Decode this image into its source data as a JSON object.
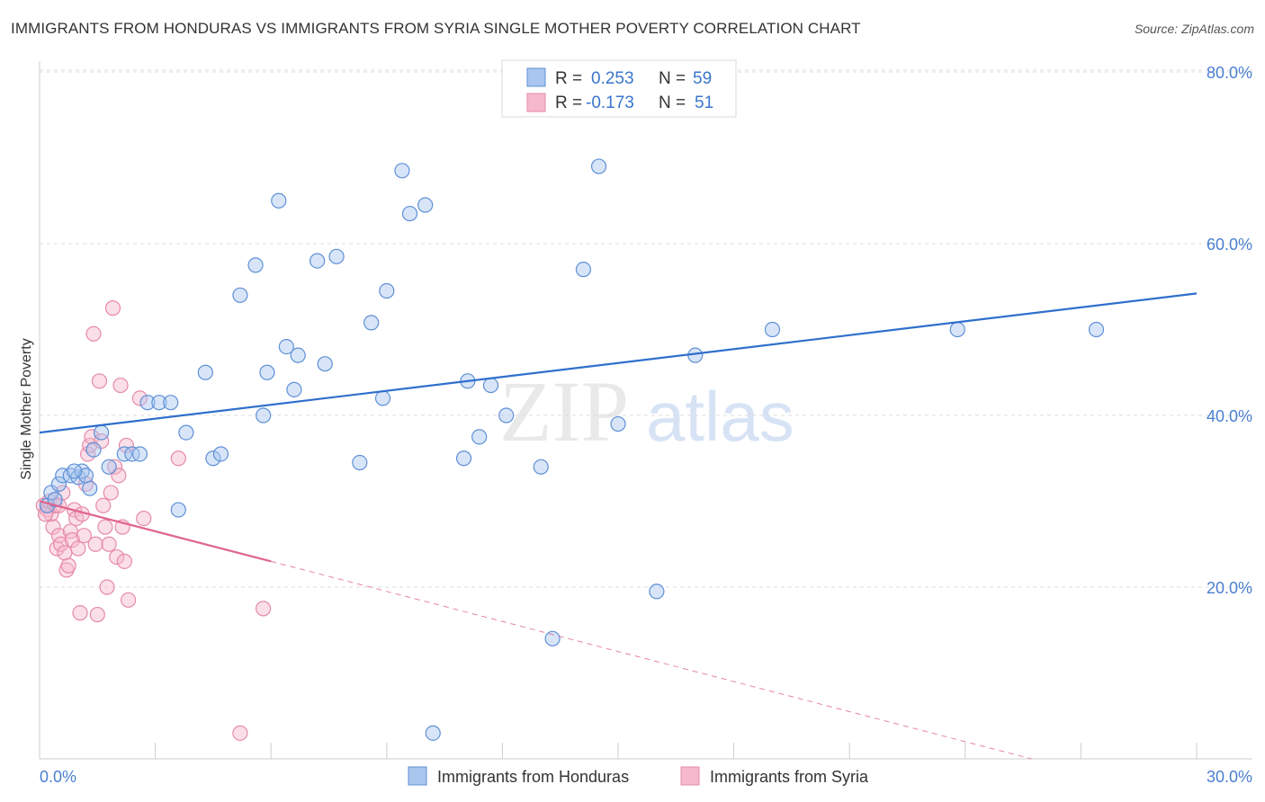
{
  "title": "IMMIGRANTS FROM HONDURAS VS IMMIGRANTS FROM SYRIA SINGLE MOTHER POVERTY CORRELATION CHART",
  "source": "Source: ZipAtlas.com",
  "watermark": {
    "zip": "ZIP",
    "atlas": "atlas"
  },
  "colors": {
    "honduras_fill": "#a9c6ef",
    "honduras_stroke": "#5e90d6",
    "honduras_line": "#2f6fcc",
    "syria_fill": "#f6b8cc",
    "syria_stroke": "#e58aa8",
    "syria_line": "#e0648f",
    "grid": "#dddddd",
    "tick_text": "#4a7fd0"
  },
  "legend": {
    "rows": [
      {
        "r_label": "R =",
        "r_value": "0.253",
        "n_label": "N =",
        "n_value": "59"
      },
      {
        "r_label": "R =",
        "r_value": "-0.173",
        "n_label": "N =",
        "n_value": "51"
      }
    ]
  },
  "chart_data": {
    "type": "scatter",
    "title": "IMMIGRANTS FROM HONDURAS VS IMMIGRANTS FROM SYRIA SINGLE MOTHER POVERTY CORRELATION CHART",
    "xlabel": "",
    "ylabel": "Single Mother Poverty",
    "xlim": [
      0,
      30
    ],
    "ylim": [
      0,
      80
    ],
    "x_tick_labels": [
      "0.0%",
      "30.0%"
    ],
    "y_ticks": [
      20,
      40,
      60,
      80
    ],
    "y_tick_labels": [
      "20.0%",
      "40.0%",
      "60.0%",
      "80.0%"
    ],
    "series": [
      {
        "name": "Immigrants from Honduras",
        "r": 0.253,
        "n": 59,
        "trend": {
          "x0": 0.0,
          "y0": 38.0,
          "x1": 30.0,
          "y1": 54.2,
          "dashed_from": null
        },
        "points": [
          [
            0.2,
            29.5
          ],
          [
            0.3,
            31.0
          ],
          [
            0.4,
            30.2
          ],
          [
            0.5,
            32.0
          ],
          [
            0.6,
            33.0
          ],
          [
            0.8,
            33.0
          ],
          [
            1.0,
            32.8
          ],
          [
            1.1,
            33.5
          ],
          [
            1.3,
            31.5
          ],
          [
            1.4,
            36.0
          ],
          [
            1.6,
            38.0
          ],
          [
            1.8,
            34.0
          ],
          [
            2.2,
            35.5
          ],
          [
            2.4,
            35.5
          ],
          [
            2.6,
            35.5
          ],
          [
            2.8,
            41.5
          ],
          [
            3.1,
            41.5
          ],
          [
            3.4,
            41.5
          ],
          [
            3.6,
            29.0
          ],
          [
            3.8,
            38.0
          ],
          [
            4.3,
            45.0
          ],
          [
            4.5,
            35.0
          ],
          [
            4.7,
            35.5
          ],
          [
            5.2,
            54.0
          ],
          [
            5.6,
            57.5
          ],
          [
            5.8,
            40.0
          ],
          [
            5.9,
            45.0
          ],
          [
            6.2,
            65.0
          ],
          [
            6.4,
            48.0
          ],
          [
            6.6,
            43.0
          ],
          [
            6.7,
            47.0
          ],
          [
            7.2,
            58.0
          ],
          [
            7.4,
            46.0
          ],
          [
            7.7,
            58.5
          ],
          [
            8.3,
            34.5
          ],
          [
            8.6,
            50.8
          ],
          [
            8.9,
            42.0
          ],
          [
            9.0,
            54.5
          ],
          [
            9.4,
            68.5
          ],
          [
            9.6,
            63.5
          ],
          [
            10.0,
            64.5
          ],
          [
            10.2,
            3.0
          ],
          [
            11.0,
            35.0
          ],
          [
            11.1,
            44.0
          ],
          [
            11.4,
            37.5
          ],
          [
            11.7,
            43.5
          ],
          [
            12.1,
            40.0
          ],
          [
            13.0,
            34.0
          ],
          [
            13.3,
            14.0
          ],
          [
            14.1,
            57.0
          ],
          [
            14.5,
            69.0
          ],
          [
            15.0,
            39.0
          ],
          [
            16.0,
            19.5
          ],
          [
            17.0,
            47.0
          ],
          [
            19.0,
            50.0
          ],
          [
            23.8,
            50.0
          ],
          [
            27.4,
            50.0
          ],
          [
            1.2,
            33.0
          ],
          [
            0.9,
            33.5
          ]
        ]
      },
      {
        "name": "Immigrants from Syria",
        "r": -0.173,
        "n": 51,
        "trend": {
          "x0": 0.0,
          "y0": 30.0,
          "x1": 6.0,
          "y1": 23.0,
          "dashed_to": 23.0
        },
        "points": [
          [
            0.1,
            29.5
          ],
          [
            0.2,
            29.0
          ],
          [
            0.25,
            30.0
          ],
          [
            0.3,
            28.5
          ],
          [
            0.35,
            27.0
          ],
          [
            0.4,
            29.5
          ],
          [
            0.45,
            24.5
          ],
          [
            0.5,
            26.0
          ],
          [
            0.55,
            25.0
          ],
          [
            0.6,
            31.0
          ],
          [
            0.65,
            24.0
          ],
          [
            0.7,
            22.0
          ],
          [
            0.75,
            22.5
          ],
          [
            0.8,
            26.5
          ],
          [
            0.85,
            25.5
          ],
          [
            0.9,
            29.0
          ],
          [
            0.95,
            28.0
          ],
          [
            1.0,
            24.5
          ],
          [
            1.05,
            17.0
          ],
          [
            1.1,
            28.5
          ],
          [
            1.15,
            26.0
          ],
          [
            1.2,
            32.0
          ],
          [
            1.25,
            35.5
          ],
          [
            1.3,
            36.5
          ],
          [
            1.35,
            37.5
          ],
          [
            1.4,
            49.5
          ],
          [
            1.45,
            25.0
          ],
          [
            1.5,
            16.8
          ],
          [
            1.55,
            44.0
          ],
          [
            1.6,
            37.0
          ],
          [
            1.65,
            29.5
          ],
          [
            1.7,
            27.0
          ],
          [
            1.75,
            20.0
          ],
          [
            1.8,
            25.0
          ],
          [
            1.85,
            31.0
          ],
          [
            1.9,
            52.5
          ],
          [
            1.95,
            34.0
          ],
          [
            2.0,
            23.5
          ],
          [
            2.05,
            33.0
          ],
          [
            2.1,
            43.5
          ],
          [
            2.15,
            27.0
          ],
          [
            2.2,
            23.0
          ],
          [
            2.25,
            36.5
          ],
          [
            2.3,
            18.5
          ],
          [
            2.6,
            42.0
          ],
          [
            2.7,
            28.0
          ],
          [
            3.6,
            35.0
          ],
          [
            5.2,
            3.0
          ],
          [
            5.8,
            17.5
          ],
          [
            0.15,
            28.5
          ],
          [
            0.5,
            29.5
          ]
        ]
      }
    ]
  },
  "bottom_legend": {
    "honduras_label": "Immigrants from Honduras",
    "syria_label": "Immigrants from Syria"
  }
}
